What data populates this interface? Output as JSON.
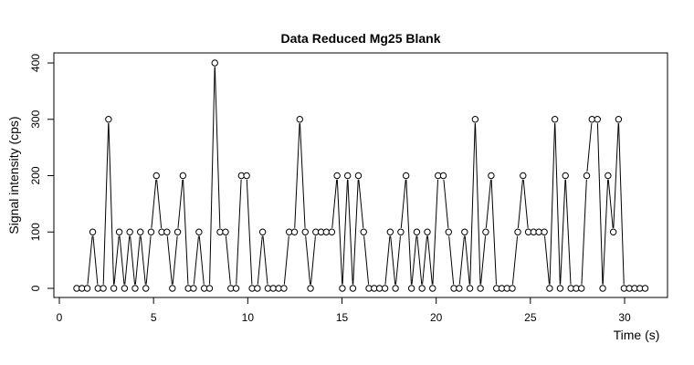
{
  "chart_data": {
    "type": "line",
    "title": "Data Reduced Mg25 Blank",
    "xlabel": "Time (s)",
    "ylabel": "Signal intensity (cps)",
    "xlim": [
      0,
      32
    ],
    "ylim": [
      0,
      400
    ],
    "x_ticks": [
      0,
      5,
      10,
      15,
      20,
      25,
      30
    ],
    "y_ticks": [
      0,
      100,
      200,
      300,
      400
    ],
    "marker": "open-circle",
    "line_gap_fraction": 0.3,
    "series": [
      {
        "name": "Mg25 Blank",
        "x": [
          0.92,
          1.2,
          1.48,
          1.77,
          2.05,
          2.33,
          2.61,
          2.89,
          3.18,
          3.46,
          3.74,
          4.02,
          4.3,
          4.59,
          4.87,
          5.15,
          5.43,
          5.71,
          6.0,
          6.28,
          6.56,
          6.84,
          7.12,
          7.41,
          7.69,
          7.97,
          8.25,
          8.53,
          8.82,
          9.1,
          9.38,
          9.66,
          9.94,
          10.23,
          10.51,
          10.79,
          11.07,
          11.35,
          11.64,
          11.92,
          12.2,
          12.48,
          12.76,
          13.05,
          13.33,
          13.61,
          13.89,
          14.17,
          14.46,
          14.74,
          15.02,
          15.3,
          15.58,
          15.87,
          16.15,
          16.43,
          16.71,
          16.99,
          17.28,
          17.56,
          17.84,
          18.12,
          18.4,
          18.69,
          18.97,
          19.25,
          19.53,
          19.81,
          20.1,
          20.38,
          20.66,
          20.94,
          21.22,
          21.51,
          21.79,
          22.07,
          22.35,
          22.63,
          22.92,
          23.2,
          23.48,
          23.76,
          24.04,
          24.33,
          24.61,
          24.89,
          25.17,
          25.45,
          25.74,
          26.02,
          26.3,
          26.58,
          26.86,
          27.15,
          27.43,
          27.71,
          27.99,
          28.27,
          28.56,
          28.84,
          29.12,
          29.4,
          29.68,
          29.97,
          30.25,
          30.53,
          30.81,
          31.09
        ],
        "values": [
          0,
          0,
          0,
          100,
          0,
          0,
          300,
          0,
          100,
          0,
          100,
          0,
          100,
          0,
          100,
          200,
          100,
          100,
          0,
          100,
          200,
          0,
          0,
          100,
          0,
          0,
          400,
          100,
          100,
          0,
          0,
          200,
          200,
          0,
          0,
          100,
          0,
          0,
          0,
          0,
          100,
          100,
          300,
          100,
          0,
          100,
          100,
          100,
          100,
          200,
          0,
          200,
          0,
          200,
          100,
          0,
          0,
          0,
          0,
          100,
          0,
          100,
          200,
          0,
          100,
          0,
          100,
          0,
          200,
          200,
          100,
          0,
          0,
          100,
          0,
          300,
          0,
          100,
          200,
          0,
          0,
          0,
          0,
          100,
          200,
          100,
          100,
          100,
          100,
          0,
          300,
          0,
          200,
          0,
          0,
          0,
          200,
          300,
          300,
          0,
          200,
          100,
          300,
          0,
          0,
          0,
          0,
          0
        ]
      }
    ]
  }
}
